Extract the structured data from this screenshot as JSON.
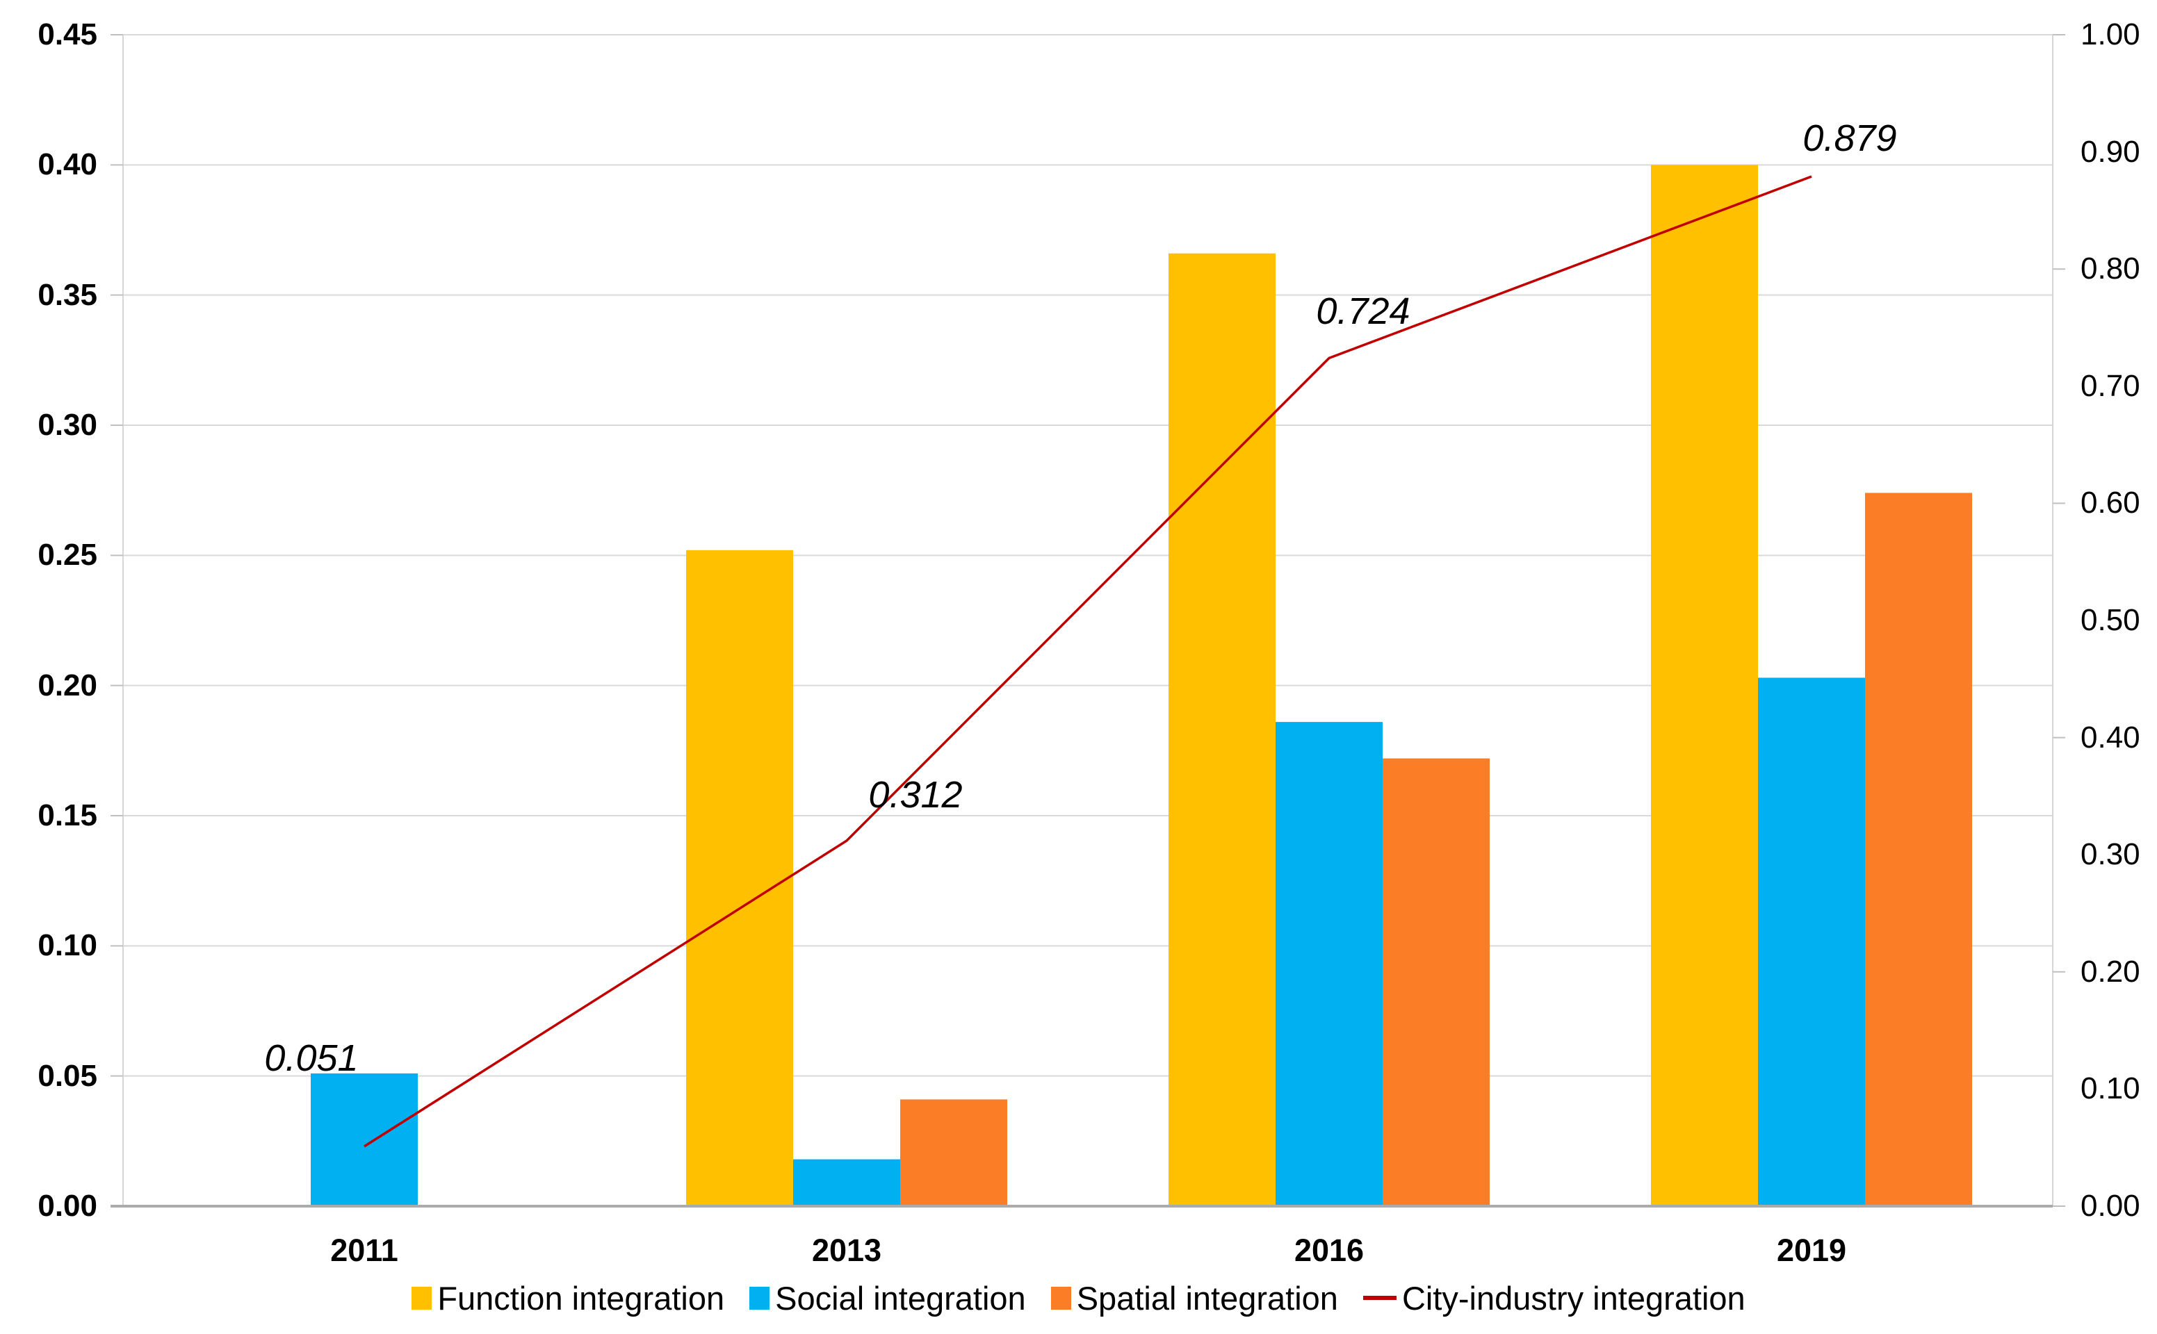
{
  "chart_data": {
    "type": "combo-bar-line",
    "title": "",
    "categories": [
      "2011",
      "2013",
      "2016",
      "2019"
    ],
    "bar_series": [
      {
        "name": "Function integration",
        "color": "#FFC000",
        "axis": "left",
        "values": [
          0,
          0.252,
          0.366,
          0.4
        ]
      },
      {
        "name": "Social integration",
        "color": "#00B0F0",
        "axis": "left",
        "values": [
          0.051,
          0.018,
          0.186,
          0.203
        ]
      },
      {
        "name": "Spatial integration",
        "color": "#FB7D26",
        "axis": "left",
        "values": [
          0,
          0.041,
          0.172,
          0.274
        ]
      }
    ],
    "line_series": {
      "name": "City-industry integration",
      "color": "#C00000",
      "axis": "right",
      "values": [
        0.051,
        0.312,
        0.724,
        0.879
      ],
      "labels": [
        "0.051",
        "0.312",
        "0.724",
        "0.879"
      ]
    },
    "left_axis": {
      "min": 0.0,
      "max": 0.45,
      "step": 0.05,
      "tick_labels": [
        "0.00",
        "0.05",
        "0.10",
        "0.15",
        "0.20",
        "0.25",
        "0.30",
        "0.35",
        "0.40",
        "0.45"
      ]
    },
    "right_axis": {
      "min": 0.0,
      "max": 1.0,
      "step": 0.1,
      "tick_labels": [
        "0.00",
        "0.10",
        "0.20",
        "0.30",
        "0.40",
        "0.50",
        "0.60",
        "0.70",
        "0.80",
        "0.90",
        "1.00"
      ]
    },
    "grid": true,
    "legend_position": "bottom",
    "colors": {
      "gridline": "#D9D9D9",
      "plot_border": "#D6D6D6",
      "axis_line": "#ABABAB",
      "tick": "#BFBFBF",
      "text": "#000000"
    }
  }
}
